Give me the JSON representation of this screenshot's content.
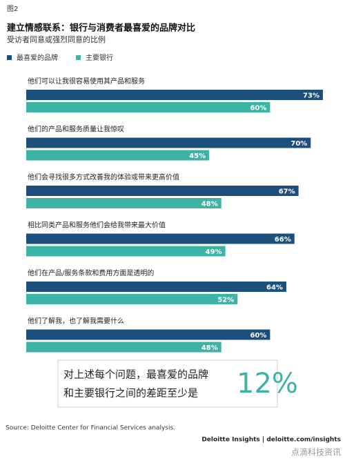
{
  "chart_data": {
    "type": "hbar",
    "figure_label": "图2",
    "title": "建立情感联系：银行与消费者最喜爱的品牌对比",
    "subtitle": "受访者同意或强烈同意的比例",
    "categories": [
      "他们可以让我很容易使用其产品和服务",
      "他们的产品和服务质量让我惊叹",
      "他们会寻找很多方式改善我的体验或带来更高价值",
      "相比同类产品和服务他们会给我带来最大价值",
      "他们在产品/服务条款和费用方面是透明的",
      "他们了解我，也了解我需要什么"
    ],
    "series": [
      {
        "name": "最喜爱的品牌",
        "color": "#1d4f7c",
        "values": [
          73,
          70,
          67,
          66,
          64,
          60
        ],
        "value_labels": [
          "73%",
          "70%",
          "67%",
          "66%",
          "64%",
          "60%"
        ]
      },
      {
        "name": "主要银行",
        "color": "#3db3a6",
        "values": [
          60,
          45,
          48,
          49,
          52,
          48
        ],
        "value_labels": [
          "60%",
          "45%",
          "48%",
          "49%",
          "52%",
          "48%"
        ]
      }
    ],
    "callout": {
      "lines": [
        "对上述每个问题，最喜爱的品牌",
        "和主要银行之间的差距至少是"
      ],
      "highlight": "12%"
    },
    "source": "Source: Deloitte Center for Financial Services analysis.",
    "footer": "Deloitte Insights | deloitte.com/insights",
    "watermark": "点滴科技资讯"
  }
}
